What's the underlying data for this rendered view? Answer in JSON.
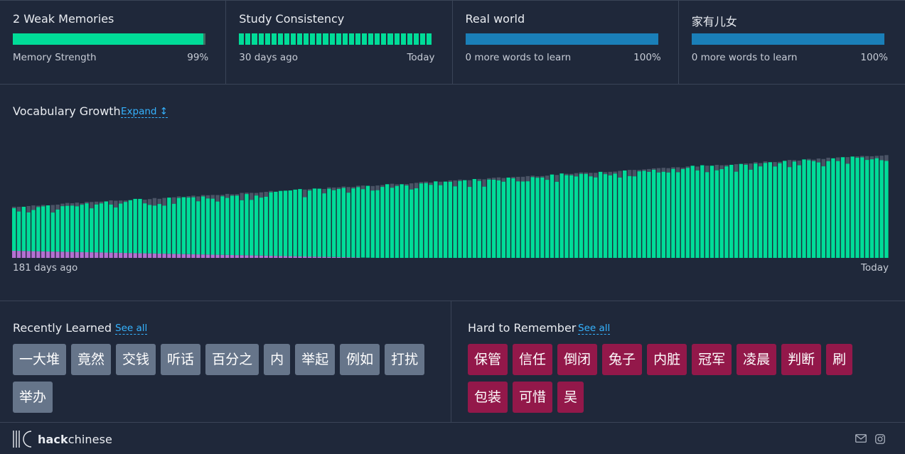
{
  "stats": [
    {
      "title": "2 Weak Memories",
      "left": "Memory Strength",
      "right": "99%",
      "fill_percent": 99,
      "color": "#00dc98"
    },
    {
      "title": "Study Consistency",
      "left": "30 days ago",
      "right": "Today",
      "segments": 30,
      "color": "#00dc98"
    },
    {
      "title": "Real world",
      "left": "0 more words to learn",
      "right": "100%",
      "fill_percent": 100,
      "color": "#1a7fb8"
    },
    {
      "title": "家有儿女",
      "left": "0 more words to learn",
      "right": "100%",
      "fill_percent": 100,
      "color": "#1a7fb8"
    }
  ],
  "growth": {
    "title": "Vocabulary Growth",
    "expand_label": "Expand ↕",
    "start_label": "181 days ago",
    "end_label": "Today"
  },
  "chart_data": {
    "type": "bar",
    "stacked": true,
    "bar_count": 181,
    "start_value": 72,
    "end_value": 145,
    "max_value": 164,
    "colors": {
      "known": "#00dc98",
      "weak": "#4a5365",
      "new": "#b46fd1"
    }
  },
  "recently_learned": {
    "title": "Recently Learned",
    "see_all": "See all",
    "words": [
      "一大堆",
      "竟然",
      "交钱",
      "听话",
      "百分之",
      "内",
      "举起",
      "例如",
      "打扰",
      "举办"
    ]
  },
  "hard_to_remember": {
    "title": "Hard to Remember",
    "see_all": "See all",
    "words": [
      "保管",
      "信任",
      "倒闭",
      "兔子",
      "内脏",
      "冠军",
      "凌晨",
      "判断",
      "刷",
      "包装",
      "可惜",
      "吴"
    ]
  },
  "footer": {
    "brand_bold": "hack",
    "brand_rest": "chinese",
    "icons": [
      "mail-icon",
      "instagram-icon"
    ]
  }
}
